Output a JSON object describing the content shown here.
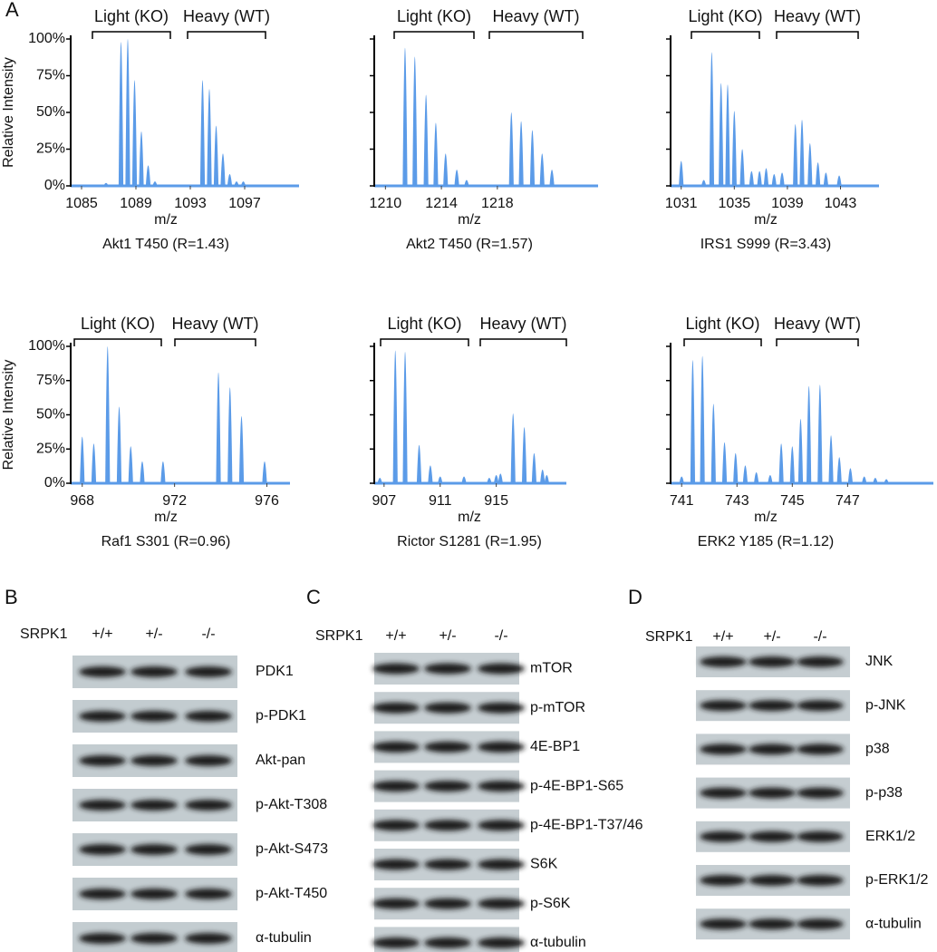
{
  "panel_a": {
    "label": "A"
  },
  "chart_data": [
    {
      "type": "bar",
      "caption": "Akt1 T450 (R=1.43)",
      "xlabel": "m/z",
      "ylabel": "Relative Intensity",
      "annotations": [
        "Light (KO)",
        "Heavy (WT)"
      ],
      "color": "#5b9be8",
      "x": [
        1086.8,
        1087.9,
        1088.4,
        1088.9,
        1089.4,
        1089.9,
        1090.4,
        1093.9,
        1094.4,
        1094.9,
        1095.4,
        1095.9,
        1096.4,
        1096.9
      ],
      "values": [
        2,
        98,
        100,
        72,
        37,
        14,
        3,
        72,
        66,
        41,
        22,
        8,
        3,
        3
      ],
      "xlim": [
        1084.2,
        1101.0
      ],
      "ylim": [
        0,
        100
      ],
      "xticks": [
        1085,
        1089,
        1093,
        1097
      ],
      "yticks": [
        {
          "value": 0,
          "label": "0%"
        },
        {
          "value": 25,
          "label": "25%"
        },
        {
          "value": 50,
          "label": "50%"
        },
        {
          "value": 75,
          "label": "75%"
        },
        {
          "value": 100,
          "label": "100%"
        }
      ]
    },
    {
      "type": "bar",
      "caption": "Akt2 T450 (R=1.57)",
      "xlabel": "m/z",
      "annotations": [
        "Light (KO)",
        "Heavy (WT)"
      ],
      "color": "#5b9be8",
      "x": [
        1211.4,
        1212.1,
        1212.9,
        1213.6,
        1214.3,
        1215.1,
        1215.8,
        1219.0,
        1219.7,
        1220.5,
        1221.2,
        1221.9
      ],
      "values": [
        94,
        88,
        62,
        43,
        22,
        11,
        4,
        50,
        44,
        38,
        22,
        11
      ],
      "xlim": [
        1209.2,
        1225.2
      ],
      "ylim": [
        0,
        100
      ],
      "xticks": [
        1210,
        1214,
        1218
      ],
      "yticks": [
        0,
        25,
        50,
        75,
        100
      ]
    },
    {
      "type": "bar",
      "caption": "IRS1 S999 (R=3.43)",
      "xlabel": "m/z",
      "annotations": [
        "Light (KO)",
        "Heavy (WT)"
      ],
      "color": "#5b9be8",
      "x": [
        1031.0,
        1032.7,
        1033.3,
        1034.0,
        1034.5,
        1035.0,
        1035.6,
        1036.3,
        1036.9,
        1037.4,
        1038.0,
        1038.6,
        1039.6,
        1040.1,
        1040.7,
        1041.3,
        1041.9,
        1042.9
      ],
      "values": [
        17,
        4,
        91,
        70,
        69,
        51,
        25,
        10,
        10,
        12,
        8,
        9,
        42,
        45,
        29,
        16,
        9,
        7
      ],
      "xlim": [
        1030.2,
        1045.9
      ],
      "ylim": [
        0,
        100
      ],
      "xticks": [
        1031,
        1035,
        1039,
        1043
      ],
      "yticks": [
        0,
        25,
        50,
        75,
        100
      ]
    },
    {
      "type": "bar",
      "caption": "Raf1 S301 (R=0.96)",
      "xlabel": "m/z",
      "ylabel": "Relative Intensity",
      "annotations": [
        "Light (KO)",
        "Heavy (WT)"
      ],
      "color": "#5b9be8",
      "x": [
        968.0,
        968.5,
        969.1,
        969.6,
        970.1,
        970.6,
        971.5,
        973.9,
        974.4,
        974.9,
        975.9
      ],
      "values": [
        34,
        29,
        100,
        56,
        27,
        16,
        16,
        81,
        70,
        49,
        16
      ],
      "xlim": [
        967.5,
        977.0
      ],
      "ylim": [
        0,
        100
      ],
      "xticks": [
        968,
        972,
        976
      ],
      "yticks": [
        {
          "value": 0,
          "label": "0%"
        },
        {
          "value": 25,
          "label": "25%"
        },
        {
          "value": 50,
          "label": "50%"
        },
        {
          "value": 75,
          "label": "75%"
        },
        {
          "value": 100,
          "label": "100%"
        }
      ]
    },
    {
      "type": "bar",
      "caption": "Rictor S1281 (R=1.95)",
      "xlabel": "m/z",
      "annotations": [
        "Light (KO)",
        "Heavy (WT)"
      ],
      "color": "#5b9be8",
      "x": [
        906.7,
        907.8,
        908.5,
        909.5,
        910.3,
        911.0,
        912.7,
        914.5,
        915.0,
        915.3,
        916.2,
        917.0,
        917.7,
        918.3,
        918.6
      ],
      "values": [
        4,
        97,
        96,
        28,
        13,
        5,
        5,
        4,
        6,
        7,
        51,
        41,
        22,
        10,
        6
      ],
      "xlim": [
        906.3,
        920.0
      ],
      "ylim": [
        0,
        100
      ],
      "xticks": [
        907,
        911,
        915
      ],
      "yticks": [
        0,
        25,
        50,
        75,
        100
      ]
    },
    {
      "type": "bar",
      "caption": "ERK2 Y185 (R=1.12)",
      "xlabel": "m/z",
      "annotations": [
        "Light (KO)",
        "Heavy (WT)"
      ],
      "color": "#5b9be8",
      "x": [
        741.0,
        741.4,
        741.75,
        742.15,
        742.55,
        742.95,
        743.3,
        743.7,
        744.2,
        744.6,
        745.0,
        745.3,
        745.6,
        746.0,
        746.4,
        746.7,
        747.1,
        747.6,
        748.0,
        748.4
      ],
      "values": [
        5,
        90,
        93,
        58,
        30,
        22,
        13,
        8,
        6,
        29,
        27,
        47,
        71,
        72,
        35,
        19,
        11,
        5,
        4,
        3
      ],
      "xlim": [
        740.6,
        750.1
      ],
      "ylim": [
        0,
        100
      ],
      "xticks": [
        741,
        743,
        745,
        747
      ],
      "yticks": [
        0,
        25,
        50,
        75,
        100
      ]
    }
  ],
  "blots": [
    {
      "label": "B",
      "genotype_title": "SRPK1",
      "genotypes": [
        "+/+",
        "+/-",
        "-/-"
      ],
      "rows": [
        "PDK1",
        "p-PDK1",
        "Akt-pan",
        "p-Akt-T308",
        "p-Akt-S473",
        "p-Akt-T450",
        "α-tubulin"
      ]
    },
    {
      "label": "C",
      "genotype_title": "SRPK1",
      "genotypes": [
        "+/+",
        "+/-",
        "-/-"
      ],
      "rows": [
        "mTOR",
        "p-mTOR",
        "4E-BP1",
        "p-4E-BP1-S65",
        "p-4E-BP1-T37/46",
        "S6K",
        "p-S6K",
        "α-tubulin"
      ]
    },
    {
      "label": "D",
      "genotype_title": "SRPK1",
      "genotypes": [
        "+/+",
        "+/-",
        "-/-"
      ],
      "rows": [
        "JNK",
        "p-JNK",
        "p38",
        "p-p38",
        "ERK1/2",
        "p-ERK1/2",
        "α-tubulin"
      ]
    }
  ]
}
